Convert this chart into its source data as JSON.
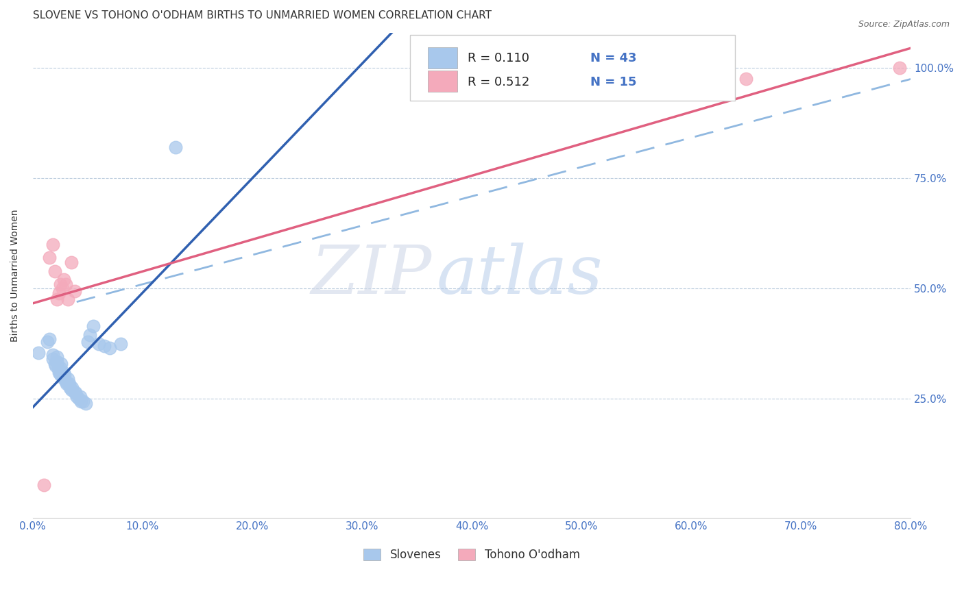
{
  "title": "SLOVENE VS TOHONO O'ODHAM BIRTHS TO UNMARRIED WOMEN CORRELATION CHART",
  "source": "Source: ZipAtlas.com",
  "ylabel": "Births to Unmarried Women",
  "xlim": [
    0.0,
    0.8
  ],
  "ylim": [
    -0.02,
    1.08
  ],
  "legend_labels": [
    "Slovenes",
    "Tohono O'odham"
  ],
  "blue_color": "#A8C8EC",
  "pink_color": "#F4AABB",
  "blue_line_color": "#3060B0",
  "pink_line_color": "#E06080",
  "dash_line_color": "#90B8E0",
  "R_blue": 0.11,
  "N_blue": 43,
  "R_pink": 0.512,
  "N_pink": 15,
  "blue_scatter_x": [
    0.005,
    0.013,
    0.015,
    0.018,
    0.018,
    0.02,
    0.021,
    0.022,
    0.022,
    0.023,
    0.024,
    0.024,
    0.025,
    0.025,
    0.026,
    0.027,
    0.028,
    0.028,
    0.029,
    0.03,
    0.031,
    0.032,
    0.033,
    0.033,
    0.034,
    0.035,
    0.036,
    0.038,
    0.039,
    0.04,
    0.042,
    0.043,
    0.044,
    0.046,
    0.048,
    0.05,
    0.052,
    0.055,
    0.06,
    0.065,
    0.07,
    0.08,
    0.13
  ],
  "blue_scatter_y": [
    0.355,
    0.38,
    0.385,
    0.34,
    0.35,
    0.33,
    0.325,
    0.335,
    0.345,
    0.32,
    0.31,
    0.315,
    0.305,
    0.32,
    0.33,
    0.3,
    0.295,
    0.31,
    0.305,
    0.29,
    0.285,
    0.295,
    0.28,
    0.285,
    0.275,
    0.27,
    0.275,
    0.265,
    0.265,
    0.255,
    0.25,
    0.255,
    0.245,
    0.245,
    0.24,
    0.38,
    0.395,
    0.415,
    0.375,
    0.37,
    0.365,
    0.375,
    0.82
  ],
  "pink_scatter_x": [
    0.01,
    0.015,
    0.018,
    0.02,
    0.022,
    0.024,
    0.025,
    0.027,
    0.028,
    0.03,
    0.032,
    0.035,
    0.038,
    0.65,
    0.79
  ],
  "pink_scatter_y": [
    0.055,
    0.57,
    0.6,
    0.54,
    0.475,
    0.49,
    0.51,
    0.5,
    0.52,
    0.51,
    0.475,
    0.56,
    0.495,
    0.975,
    1.0
  ],
  "watermark_zip": "ZIP",
  "watermark_atlas": "atlas",
  "background_color": "#FFFFFF",
  "grid_color": "#BBCCDD",
  "title_fontsize": 11,
  "tick_label_color": "#4472C4",
  "title_color": "#333333",
  "source_color": "#666666"
}
